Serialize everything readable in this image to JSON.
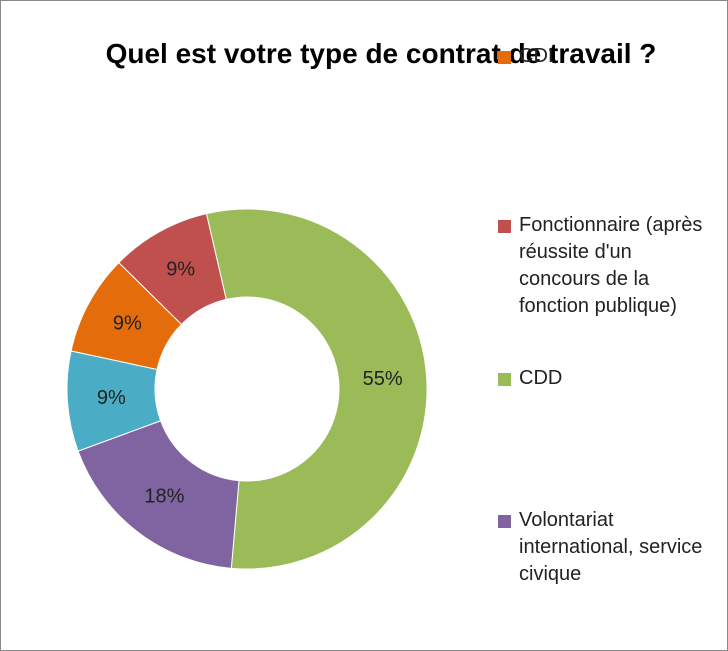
{
  "chart_data": {
    "type": "donut",
    "title": "Quel est votre type de contrat de travail ?",
    "categories": [
      "CDI",
      "Fonctionnaire (après réussite d'un concours de la fonction publique)",
      "CDD",
      "Volontariat international, service civique",
      null
    ],
    "values": [
      9,
      9,
      55,
      18,
      9
    ],
    "value_labels": [
      "9%",
      "9%",
      "55%",
      "18%",
      "9%"
    ],
    "colors": [
      "#e46c0a",
      "#c0504d",
      "#9bbb59",
      "#8064a2",
      "#4bacc6"
    ],
    "legend": "right"
  }
}
